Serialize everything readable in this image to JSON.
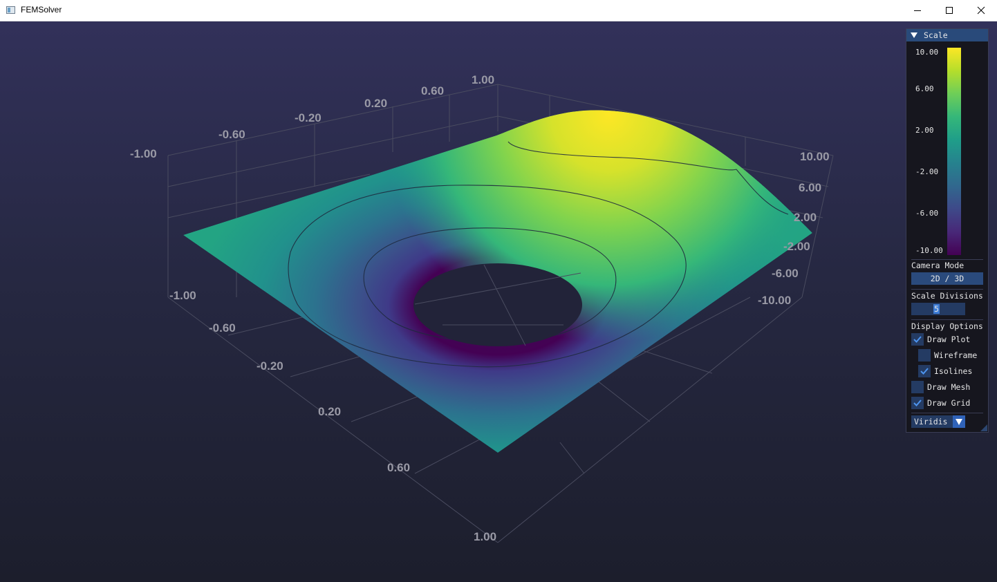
{
  "window": {
    "title": "FEMSolver"
  },
  "axes": {
    "x_ticks": [
      "-1.00",
      "-0.60",
      "-0.20",
      "0.20",
      "0.60",
      "1.00"
    ],
    "y_ticks": [
      "-1.00",
      "-0.60",
      "-0.20",
      "0.20",
      "0.60",
      "1.00"
    ],
    "z_ticks": [
      "10.00",
      "6.00",
      "2.00",
      "-2.00",
      "-6.00",
      "-10.00"
    ]
  },
  "panel": {
    "title": "Scale",
    "scale_ticks": [
      "10.00",
      "6.00",
      "2.00",
      "-2.00",
      "-6.00",
      "-10.00"
    ],
    "colormap_range": [
      -10,
      10
    ],
    "camera_mode_label": "Camera Mode",
    "camera_mode_button": "2D / 3D",
    "scale_divisions_label": "Scale Divisions",
    "scale_divisions_value": "5",
    "display_options_label": "Display Options",
    "draw_plot_label": "Draw Plot",
    "draw_plot_checked": true,
    "wireframe_label": "Wireframe",
    "wireframe_checked": false,
    "isolines_label": "Isolines",
    "isolines_checked": true,
    "draw_mesh_label": "Draw Mesh",
    "draw_mesh_checked": false,
    "draw_grid_label": "Draw Grid",
    "draw_grid_checked": true,
    "colormap_value": "Viridis"
  },
  "colors": {
    "accent": "#2a4a7c",
    "header": "#294a7a",
    "check": "#4d95f0"
  }
}
